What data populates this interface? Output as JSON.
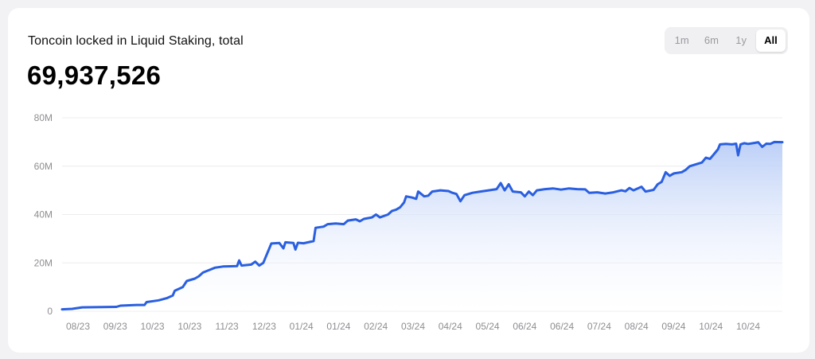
{
  "header": {
    "title": "Toncoin locked in Liquid Staking, total",
    "value": "69,937,526"
  },
  "range_selector": {
    "options": [
      "1m",
      "6m",
      "1y",
      "All"
    ],
    "selected": "All"
  },
  "colors": {
    "line": "#2a5fe0",
    "fill_top": "#b9cdf7",
    "grid": "#ececef"
  },
  "chart_data": {
    "type": "area",
    "title": "Toncoin locked in Liquid Staking, total",
    "xlabel": "",
    "ylabel": "",
    "ylim": [
      0,
      80000000
    ],
    "y_ticks": [
      0,
      20000000,
      40000000,
      60000000,
      80000000
    ],
    "y_tick_labels": [
      "0",
      "20M",
      "40M",
      "60M",
      "80M"
    ],
    "x_tick_labels": [
      "08/23",
      "09/23",
      "10/23",
      "10/23",
      "11/23",
      "12/23",
      "01/24",
      "01/24",
      "02/24",
      "03/24",
      "04/24",
      "05/24",
      "06/24",
      "06/24",
      "07/24",
      "08/24",
      "09/24",
      "10/24",
      "10/24"
    ],
    "grid": true,
    "legend": "none",
    "series": [
      {
        "values": [
          [
            0,
            0.8
          ],
          [
            2.5,
            1.0
          ],
          [
            5,
            1.6
          ],
          [
            10,
            1.7
          ],
          [
            13.5,
            1.8
          ],
          [
            14.5,
            2.3
          ],
          [
            18.5,
            2.6
          ],
          [
            20.5,
            2.6
          ],
          [
            21,
            3.8
          ],
          [
            24,
            4.5
          ],
          [
            26,
            5.4
          ],
          [
            27.5,
            6.5
          ],
          [
            28,
            8.5
          ],
          [
            30,
            10.0
          ],
          [
            31,
            12.5
          ],
          [
            33,
            13.5
          ],
          [
            34,
            14.5
          ],
          [
            35,
            16.0
          ],
          [
            36.5,
            17.0
          ],
          [
            38,
            18.0
          ],
          [
            40,
            18.5
          ],
          [
            42,
            18.6
          ],
          [
            43.5,
            18.7
          ],
          [
            44,
            21.0
          ],
          [
            44.6,
            18.9
          ],
          [
            47,
            19.3
          ],
          [
            48,
            20.5
          ],
          [
            49,
            18.9
          ],
          [
            50,
            20.0
          ],
          [
            50.5,
            22.0
          ],
          [
            51.5,
            26.0
          ],
          [
            52,
            28.0
          ],
          [
            54,
            28.2
          ],
          [
            55,
            26.0
          ],
          [
            55.5,
            28.5
          ],
          [
            57.5,
            28.2
          ],
          [
            58,
            25.5
          ],
          [
            58.6,
            28.3
          ],
          [
            60,
            28.1
          ],
          [
            62.5,
            29.0
          ],
          [
            63,
            34.5
          ],
          [
            65,
            35.0
          ],
          [
            66,
            36.0
          ],
          [
            68,
            36.3
          ],
          [
            70,
            36.0
          ],
          [
            71,
            37.5
          ],
          [
            73,
            38.0
          ],
          [
            74,
            37.2
          ],
          [
            75,
            38.2
          ],
          [
            77,
            38.8
          ],
          [
            78,
            40.0
          ],
          [
            79,
            38.8
          ],
          [
            81,
            40.0
          ],
          [
            82,
            41.5
          ],
          [
            83,
            42.0
          ],
          [
            84,
            43.0
          ],
          [
            85,
            45.0
          ],
          [
            85.5,
            47.5
          ],
          [
            87,
            47.0
          ],
          [
            88,
            46.5
          ],
          [
            88.5,
            49.5
          ],
          [
            90,
            47.5
          ],
          [
            91,
            47.8
          ],
          [
            92,
            49.5
          ],
          [
            94,
            50.0
          ],
          [
            96,
            49.7
          ],
          [
            97,
            49.0
          ],
          [
            98,
            48.5
          ],
          [
            99,
            45.5
          ],
          [
            100,
            48.0
          ],
          [
            102,
            49.0
          ],
          [
            104,
            49.5
          ],
          [
            106,
            50.0
          ],
          [
            108,
            50.5
          ],
          [
            109,
            53.0
          ],
          [
            110,
            50.0
          ],
          [
            111,
            52.5
          ],
          [
            112,
            49.5
          ],
          [
            114,
            49.2
          ],
          [
            115,
            47.5
          ],
          [
            116,
            49.5
          ],
          [
            117,
            48.0
          ],
          [
            118,
            50.0
          ],
          [
            120,
            50.5
          ],
          [
            122,
            50.8
          ],
          [
            124,
            50.3
          ],
          [
            126,
            50.8
          ],
          [
            128,
            50.5
          ],
          [
            130,
            50.4
          ],
          [
            131,
            49.0
          ],
          [
            133,
            49.2
          ],
          [
            135,
            48.7
          ],
          [
            137,
            49.2
          ],
          [
            139,
            50.0
          ],
          [
            140,
            49.6
          ],
          [
            141,
            51.0
          ],
          [
            142,
            50.0
          ],
          [
            144,
            51.5
          ],
          [
            145,
            49.5
          ],
          [
            147,
            50.2
          ],
          [
            148,
            52.5
          ],
          [
            149,
            53.5
          ],
          [
            150,
            57.5
          ],
          [
            151,
            56.0
          ],
          [
            152,
            57.0
          ],
          [
            154,
            57.5
          ],
          [
            155,
            58.5
          ],
          [
            156,
            60.0
          ],
          [
            158,
            61.0
          ],
          [
            159,
            61.5
          ],
          [
            160,
            63.5
          ],
          [
            161,
            63.0
          ],
          [
            162,
            65.0
          ],
          [
            163,
            67.0
          ],
          [
            163.5,
            69.0
          ],
          [
            165,
            69.2
          ],
          [
            166.5,
            69.0
          ],
          [
            167.5,
            69.3
          ],
          [
            168,
            64.5
          ],
          [
            168.6,
            69.0
          ],
          [
            169.5,
            69.5
          ],
          [
            170.5,
            69.2
          ],
          [
            172,
            69.6
          ],
          [
            173,
            69.9
          ],
          [
            174,
            68.0
          ],
          [
            175,
            69.3
          ],
          [
            176,
            69.2
          ],
          [
            177,
            70.0
          ],
          [
            179,
            69.937526
          ]
        ]
      }
    ]
  }
}
